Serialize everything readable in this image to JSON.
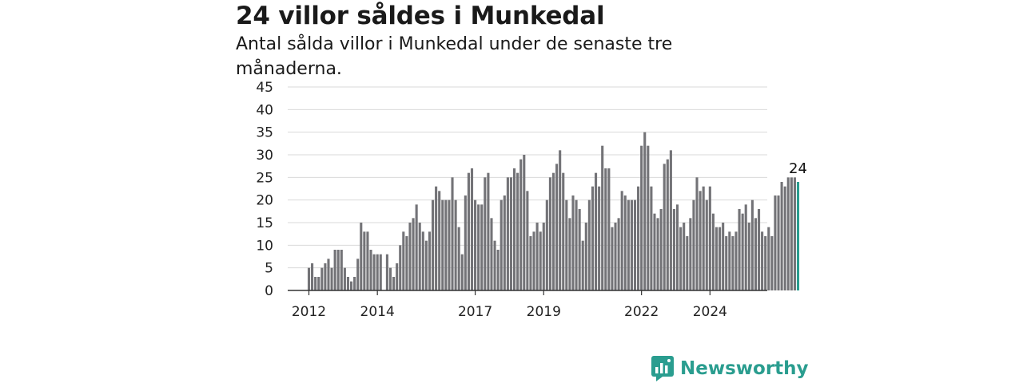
{
  "header": {
    "title": "24 villor såldes i Munkedal",
    "subtitle": "Antal sålda villor i Munkedal under de senaste tre månaderna."
  },
  "colors": {
    "bar": "#737377",
    "highlight": "#2a9d8f",
    "brand": "#2a9d8f"
  },
  "brand": {
    "name": "Newsworthy",
    "icon": "newsworthy-logo-icon"
  },
  "chart_data": {
    "type": "bar",
    "y_ticks": [
      0,
      5,
      10,
      15,
      20,
      25,
      30,
      35,
      40,
      45
    ],
    "ylim": [
      0,
      45
    ],
    "x_tick_labels": [
      {
        "label": "2012",
        "index": 0
      },
      {
        "label": "2014",
        "index": 21
      },
      {
        "label": "2017",
        "index": 51
      },
      {
        "label": "2019",
        "index": 72
      },
      {
        "label": "2022",
        "index": 102
      },
      {
        "label": "2024",
        "index": 123
      }
    ],
    "highlight_label": "24",
    "values": [
      5,
      6,
      3,
      3,
      5,
      6,
      7,
      5,
      9,
      9,
      9,
      5,
      3,
      2,
      3,
      7,
      15,
      13,
      13,
      9,
      8,
      8,
      8,
      0,
      8,
      5,
      3,
      6,
      10,
      13,
      12,
      15,
      16,
      19,
      15,
      13,
      11,
      13,
      20,
      23,
      22,
      20,
      20,
      20,
      25,
      20,
      14,
      8,
      21,
      26,
      27,
      20,
      19,
      19,
      25,
      26,
      16,
      11,
      9,
      20,
      21,
      25,
      25,
      27,
      26,
      29,
      30,
      22,
      12,
      13,
      15,
      13,
      15,
      20,
      25,
      26,
      28,
      31,
      26,
      20,
      16,
      21,
      20,
      18,
      11,
      15,
      20,
      23,
      26,
      23,
      32,
      27,
      27,
      14,
      15,
      16,
      22,
      21,
      20,
      20,
      20,
      23,
      32,
      35,
      32,
      23,
      17,
      16,
      18,
      28,
      29,
      31,
      18,
      19,
      14,
      15,
      12,
      16,
      20,
      25,
      22,
      23,
      20,
      23,
      17,
      14,
      14,
      15,
      12,
      13,
      12,
      13,
      18,
      17,
      19,
      15,
      20,
      16,
      18,
      13,
      12,
      14,
      12,
      21,
      21,
      24,
      23,
      25,
      25,
      25,
      24
    ]
  }
}
